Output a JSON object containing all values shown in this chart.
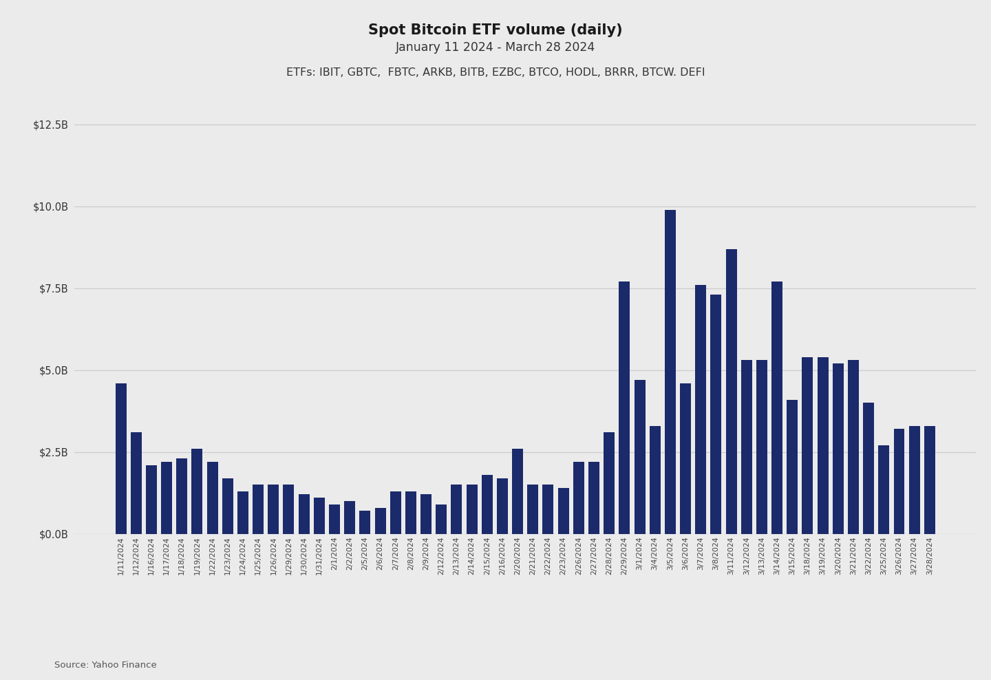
{
  "title": "Spot Bitcoin ETF volume (daily)",
  "subtitle": "January 11 2024 - March 28 2024",
  "etf_label": "ETFs: IBIT, GBTC,  FBTC, ARKB, BITB, EZBC, BTCO, HODL, BRRR, BTCW. DEFI",
  "source": "Source: Yahoo Finance",
  "bar_color": "#1B2A6B",
  "background_color": "#EBEBEB",
  "dates": [
    "1/11/2024",
    "1/12/2024",
    "1/16/2024",
    "1/17/2024",
    "1/18/2024",
    "1/19/2024",
    "1/22/2024",
    "1/23/2024",
    "1/24/2024",
    "1/25/2024",
    "1/26/2024",
    "1/29/2024",
    "1/30/2024",
    "1/31/2024",
    "2/1/2024",
    "2/2/2024",
    "2/5/2024",
    "2/6/2024",
    "2/7/2024",
    "2/8/2024",
    "2/9/2024",
    "2/12/2024",
    "2/13/2024",
    "2/14/2024",
    "2/15/2024",
    "2/16/2024",
    "2/20/2024",
    "2/21/2024",
    "2/22/2024",
    "2/23/2024",
    "2/26/2024",
    "2/27/2024",
    "2/28/2024",
    "2/29/2024",
    "3/1/2024",
    "3/4/2024",
    "3/5/2024",
    "3/6/2024",
    "3/7/2024",
    "3/8/2024",
    "3/11/2024",
    "3/12/2024",
    "3/13/2024",
    "3/14/2024",
    "3/15/2024",
    "3/18/2024",
    "3/19/2024",
    "3/20/2024",
    "3/21/2024",
    "3/22/2024",
    "3/25/2024",
    "3/26/2024",
    "3/27/2024",
    "3/28/2024"
  ],
  "values": [
    4.6,
    3.1,
    2.1,
    2.2,
    2.3,
    2.6,
    2.2,
    1.7,
    1.3,
    1.5,
    1.5,
    1.5,
    1.2,
    1.1,
    0.9,
    1.0,
    0.7,
    0.8,
    1.3,
    1.3,
    1.2,
    0.9,
    1.5,
    1.5,
    1.8,
    1.7,
    2.6,
    1.5,
    1.5,
    1.4,
    2.2,
    2.2,
    3.1,
    7.7,
    4.7,
    3.3,
    9.9,
    4.6,
    7.6,
    7.3,
    8.7,
    5.3,
    5.3,
    7.7,
    4.1,
    5.4,
    5.4,
    5.2,
    5.3,
    4.0,
    2.7,
    3.2,
    3.3,
    3.3
  ],
  "ylim": [
    0,
    13.5
  ],
  "ytick_values": [
    0.0,
    2.5,
    5.0,
    7.5,
    10.0,
    12.5
  ],
  "ytick_labels": [
    "$0.0B",
    "$2.5B",
    "$5.0B",
    "$7.5B",
    "$10.0B",
    "$12.5B"
  ]
}
